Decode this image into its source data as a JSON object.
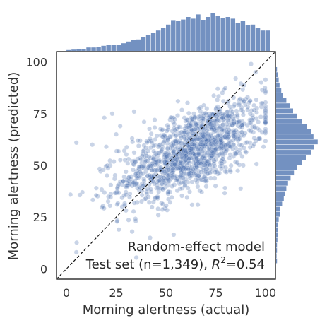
{
  "chart_data": {
    "type": "scatter",
    "subtype": "joint-plot-with-marginal-histograms",
    "xlabel": "Morning alertness (actual)",
    "ylabel": "Morning alertness (predicted)",
    "xlim": [
      -5,
      105
    ],
    "ylim": [
      -5,
      105
    ],
    "xticks": [
      0,
      25,
      50,
      75,
      100
    ],
    "yticks": [
      0,
      25,
      50,
      75,
      100
    ],
    "annotation": {
      "line1": "Random-effect model",
      "line2_prefix": "Test set (n=1,349), ",
      "r2_base": "R",
      "r2_exp": "2",
      "r2_suffix": "=0.54"
    },
    "reference_line": "identity y = x (dashed)",
    "n_points": 1349,
    "point_color": "#4c72b0",
    "point_alpha": 0.3,
    "grid": false,
    "sample_points": [
      [
        5,
        61
      ],
      [
        5,
        8
      ],
      [
        8,
        37
      ],
      [
        13,
        60
      ],
      [
        15,
        39
      ],
      [
        19,
        73
      ],
      [
        20,
        59
      ],
      [
        23,
        75
      ],
      [
        22,
        50
      ],
      [
        25,
        65
      ],
      [
        27,
        69
      ],
      [
        28,
        30
      ],
      [
        30,
        40
      ],
      [
        33,
        18
      ],
      [
        33,
        63
      ],
      [
        34,
        76
      ],
      [
        36,
        44
      ],
      [
        37,
        62
      ],
      [
        38,
        49
      ],
      [
        39,
        71
      ],
      [
        41,
        57
      ],
      [
        42,
        15
      ],
      [
        44,
        53
      ],
      [
        45,
        48
      ],
      [
        46,
        29
      ],
      [
        47,
        60
      ],
      [
        48,
        67
      ],
      [
        49,
        42
      ],
      [
        50,
        54
      ],
      [
        51,
        37
      ],
      [
        52,
        64
      ],
      [
        53,
        73
      ],
      [
        54,
        50
      ],
      [
        55,
        58
      ],
      [
        56,
        81
      ],
      [
        57,
        62
      ],
      [
        58,
        44
      ],
      [
        59,
        55
      ],
      [
        60,
        69
      ],
      [
        61,
        61
      ],
      [
        62,
        48
      ],
      [
        63,
        57
      ],
      [
        64,
        75
      ],
      [
        65,
        52
      ],
      [
        66,
        31
      ],
      [
        67,
        66
      ],
      [
        68,
        59
      ],
      [
        69,
        79
      ],
      [
        70,
        63
      ],
      [
        71,
        55
      ],
      [
        72,
        71
      ],
      [
        73,
        47
      ],
      [
        74,
        66
      ],
      [
        75,
        60
      ],
      [
        76,
        87
      ],
      [
        77,
        69
      ],
      [
        78,
        56
      ],
      [
        79,
        74
      ],
      [
        80,
        64
      ],
      [
        81,
        80
      ],
      [
        82,
        59
      ],
      [
        84,
        70
      ],
      [
        85,
        92
      ],
      [
        86,
        66
      ],
      [
        88,
        78
      ],
      [
        90,
        61
      ],
      [
        91,
        83
      ],
      [
        93,
        72
      ],
      [
        95,
        95
      ],
      [
        96,
        68
      ],
      [
        98,
        80
      ],
      [
        100,
        86
      ],
      [
        100,
        76
      ],
      [
        99,
        59
      ],
      [
        97,
        67
      ]
    ],
    "marginal_x_hist": {
      "bin_edges_start": 0,
      "bin_width": 2.5,
      "relative_heights": [
        0.02,
        0.03,
        0.04,
        0.05,
        0.08,
        0.08,
        0.1,
        0.12,
        0.14,
        0.14,
        0.15,
        0.18,
        0.22,
        0.25,
        0.27,
        0.33,
        0.38,
        0.42,
        0.48,
        0.55,
        0.62,
        0.71,
        0.7,
        0.74,
        0.8,
        0.76,
        0.86,
        0.72,
        0.8,
        0.9,
        0.82,
        0.78,
        0.8,
        0.76,
        0.66,
        0.7,
        0.6,
        0.62,
        0.55,
        0.48,
        0.48
      ]
    },
    "marginal_y_hist": {
      "bin_edges_start": 0,
      "bin_width": 2.5,
      "relative_heights": [
        0.0,
        0.02,
        0.01,
        0.02,
        0.02,
        0.03,
        0.04,
        0.05,
        0.05,
        0.06,
        0.1,
        0.1,
        0.14,
        0.18,
        0.2,
        0.24,
        0.28,
        0.34,
        0.42,
        0.5,
        0.6,
        0.7,
        0.82,
        0.9,
        0.98,
        0.88,
        0.82,
        0.72,
        0.6,
        0.5,
        0.4,
        0.32,
        0.24,
        0.16,
        0.12,
        0.08,
        0.06,
        0.04,
        0.02,
        0.0,
        0.0
      ]
    }
  }
}
